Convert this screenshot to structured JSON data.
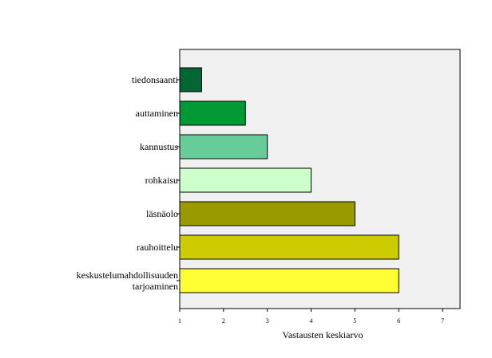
{
  "chart_data": {
    "type": "bar",
    "orientation": "horizontal",
    "categories": [
      [
        "tiedonsaanti"
      ],
      [
        "auttaminen"
      ],
      [
        "kannustus"
      ],
      [
        "rohkaisu"
      ],
      [
        "läsnäolo"
      ],
      [
        "rauhoittelu"
      ],
      [
        "keskustelumahdollisuuden",
        "tarjoaminen"
      ]
    ],
    "values": [
      1.5,
      2.5,
      3.0,
      4.0,
      5.0,
      6.0,
      6.0
    ],
    "colors": [
      "#006633",
      "#009933",
      "#66CC99",
      "#CCFFCC",
      "#999900",
      "#CCCC00",
      "#FFFF33"
    ],
    "xlabel": "Vastausten keskiarvo",
    "xlim": [
      1,
      7.4
    ],
    "xticks": [
      1,
      2,
      3,
      4,
      5,
      6,
      7
    ],
    "plot_background": "#F0F0F0",
    "grid": false
  }
}
